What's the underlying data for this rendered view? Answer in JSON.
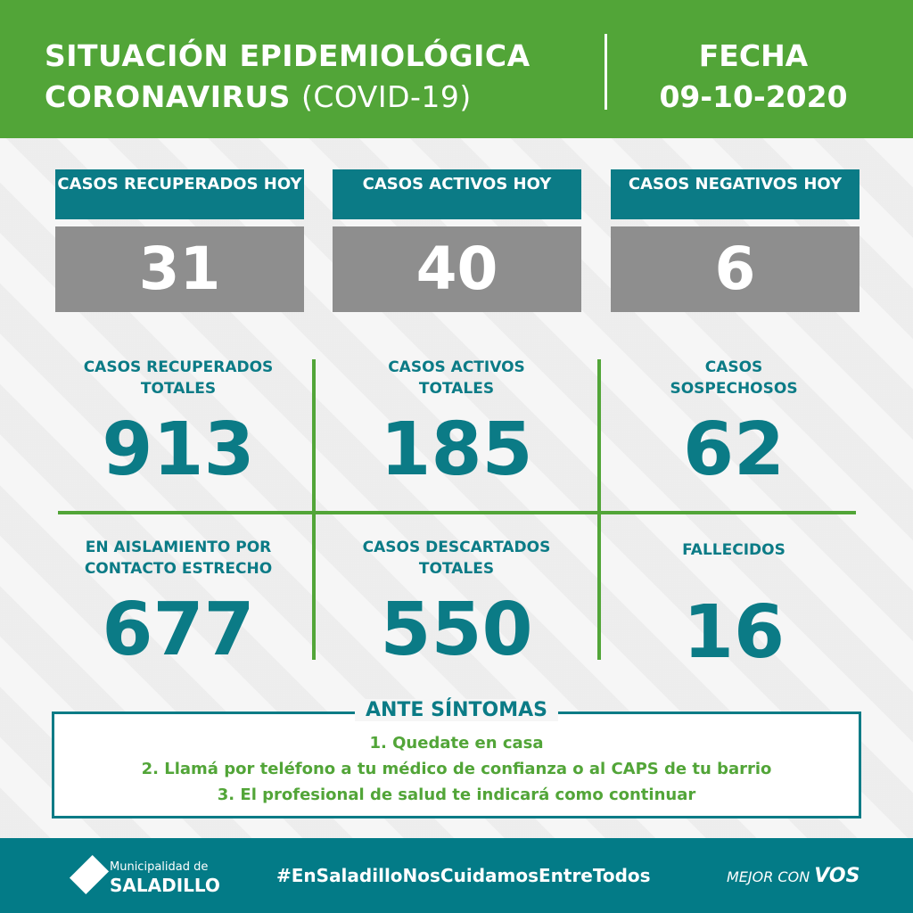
{
  "header": {
    "title_line1": "SITUACIÓN EPIDEMIOLÓGICA",
    "title_line2_bold": "CORONAVIRUS",
    "title_line2_light": "(COVID-19)",
    "date_label": "FECHA",
    "date_value": "09-10-2020"
  },
  "today": [
    {
      "label": "CASOS RECUPERADOS HOY",
      "value": "31"
    },
    {
      "label": "CASOS ACTIVOS HOY",
      "value": "40"
    },
    {
      "label": "CASOS NEGATIVOS HOY",
      "value": "6"
    }
  ],
  "stats": [
    {
      "label": "CASOS RECUPERADOS TOTALES",
      "value": "913"
    },
    {
      "label": "CASOS ACTIVOS TOTALES",
      "value": "185"
    },
    {
      "label": "CASOS SOSPECHOSOS",
      "value": "62"
    },
    {
      "label": "EN AISLAMIENTO POR CONTACTO ESTRECHO",
      "value": "677"
    },
    {
      "label": "CASOS DESCARTADOS TOTALES",
      "value": "550"
    },
    {
      "label": "FALLECIDOS",
      "value": "16"
    }
  ],
  "symptoms": {
    "title": "ANTE SÍNTOMAS",
    "items": [
      "1. Quedate en casa",
      "2. Llamá por teléfono a tu médico de confianza o al CAPS de tu barrio",
      "3. El profesional de salud te indicará como continuar"
    ]
  },
  "footer": {
    "logo_line1": "Municipalidad de",
    "logo_line2": "SALADILLO",
    "hashtag": "#EnSaladilloNosCuidamosEntreTodos",
    "slogan_a": "MEJOR CON",
    "slogan_b": "VOS"
  },
  "colors": {
    "green": "#52a538",
    "teal": "#0b7b86",
    "gray": "#8e8e8e"
  }
}
